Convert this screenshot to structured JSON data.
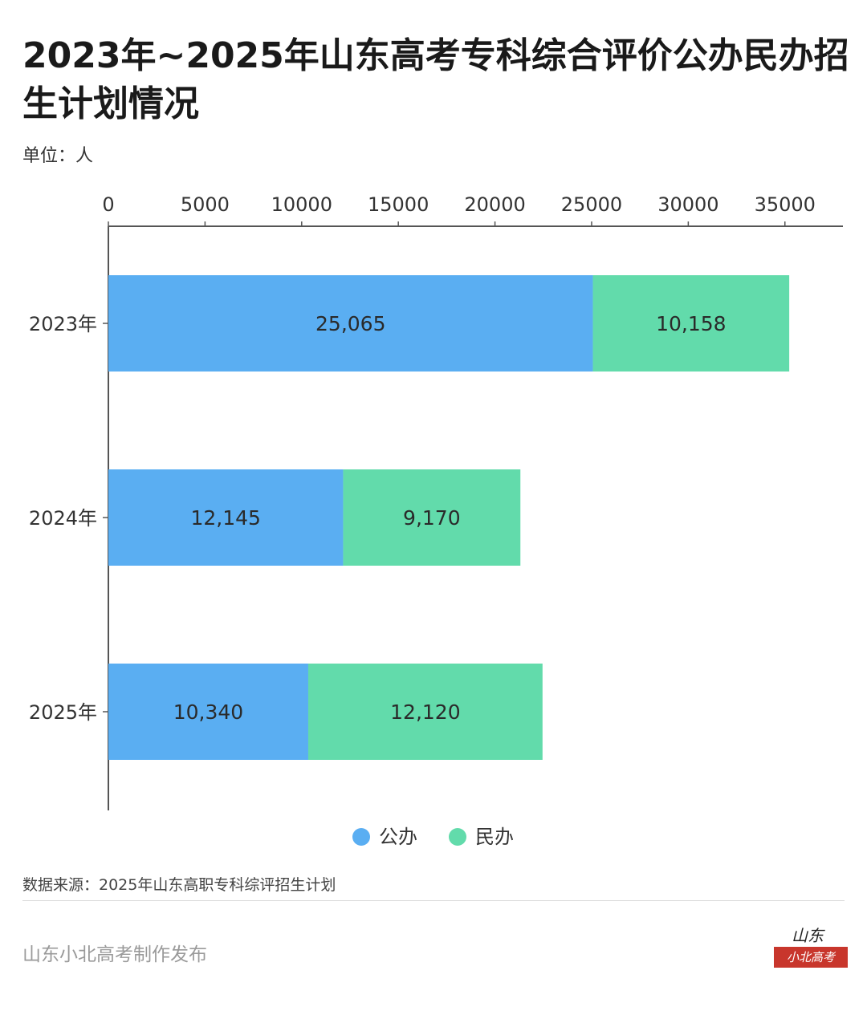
{
  "title": "2023年~2025年山东高考专科综合评价公办民办招生计划情况",
  "unit": "单位：人",
  "source": "数据来源：2025年山东高职专科综评招生计划",
  "footer": "山东小北高考制作发布",
  "logo": {
    "script": "山东",
    "badge": "小北高考"
  },
  "colors": {
    "公办": "#5aaef2",
    "民办": "#62dbab",
    "axis": "#555555"
  },
  "chart_data": {
    "type": "bar",
    "orientation": "horizontal",
    "stacked": true,
    "categories": [
      "2023年",
      "2024年",
      "2025年"
    ],
    "series": [
      {
        "name": "公办",
        "values": [
          25065,
          12145,
          10340
        ],
        "labels": [
          "25,065",
          "12,145",
          "10,340"
        ]
      },
      {
        "name": "民办",
        "values": [
          10158,
          9170,
          12120
        ],
        "labels": [
          "10,158",
          "9,170",
          "12,120"
        ]
      }
    ],
    "xlim": [
      0,
      38000
    ],
    "xticks": [
      0,
      5000,
      10000,
      15000,
      20000,
      25000,
      30000,
      35000
    ],
    "xtick_labels": [
      "0",
      "5000",
      "10000",
      "15000",
      "20000",
      "25000",
      "30000",
      "35000"
    ],
    "x_axis_position": "top",
    "legend_position": "bottom",
    "grid": false
  }
}
